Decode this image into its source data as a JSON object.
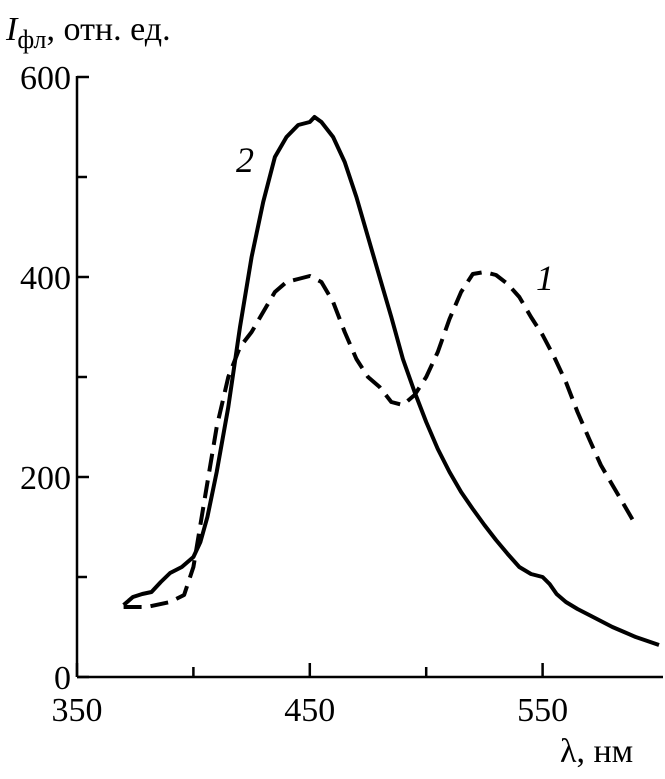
{
  "chart_data": {
    "type": "line",
    "ylabel": {
      "symbol": "I",
      "subscript": "фл",
      "unit": ", отн. ед."
    },
    "xlabel": "λ, нм",
    "xlim": [
      350,
      600
    ],
    "ylim": [
      0,
      600
    ],
    "x_ticks": [
      350,
      450,
      550
    ],
    "x_minor_ticks": [
      400,
      500
    ],
    "y_ticks": [
      0,
      200,
      400,
      600
    ],
    "y_minor_ticks": [
      100,
      300,
      500
    ],
    "grid": false,
    "series": [
      {
        "name": "1",
        "line_style": "dashed",
        "points": [
          [
            370,
            70
          ],
          [
            380,
            70
          ],
          [
            390,
            75
          ],
          [
            396,
            82
          ],
          [
            400,
            110
          ],
          [
            405,
            180
          ],
          [
            410,
            250
          ],
          [
            415,
            300
          ],
          [
            420,
            330
          ],
          [
            425,
            345
          ],
          [
            430,
            365
          ],
          [
            435,
            385
          ],
          [
            440,
            395
          ],
          [
            445,
            398
          ],
          [
            450,
            401
          ],
          [
            455,
            395
          ],
          [
            460,
            375
          ],
          [
            465,
            345
          ],
          [
            470,
            318
          ],
          [
            475,
            300
          ],
          [
            480,
            290
          ],
          [
            485,
            275
          ],
          [
            490,
            272
          ],
          [
            495,
            282
          ],
          [
            500,
            300
          ],
          [
            505,
            325
          ],
          [
            510,
            358
          ],
          [
            515,
            385
          ],
          [
            520,
            403
          ],
          [
            525,
            405
          ],
          [
            530,
            402
          ],
          [
            535,
            393
          ],
          [
            540,
            380
          ],
          [
            545,
            360
          ],
          [
            550,
            342
          ],
          [
            555,
            320
          ],
          [
            560,
            295
          ],
          [
            565,
            265
          ],
          [
            570,
            238
          ],
          [
            575,
            212
          ],
          [
            580,
            192
          ],
          [
            585,
            172
          ],
          [
            590,
            152
          ]
        ]
      },
      {
        "name": "2",
        "line_style": "solid",
        "points": [
          [
            370,
            72
          ],
          [
            374,
            80
          ],
          [
            378,
            83
          ],
          [
            382,
            85
          ],
          [
            386,
            95
          ],
          [
            390,
            104
          ],
          [
            395,
            110
          ],
          [
            400,
            120
          ],
          [
            403,
            135
          ],
          [
            406,
            160
          ],
          [
            410,
            205
          ],
          [
            415,
            270
          ],
          [
            420,
            350
          ],
          [
            425,
            420
          ],
          [
            430,
            475
          ],
          [
            435,
            520
          ],
          [
            440,
            540
          ],
          [
            445,
            552
          ],
          [
            450,
            555
          ],
          [
            452,
            560
          ],
          [
            455,
            555
          ],
          [
            460,
            540
          ],
          [
            465,
            515
          ],
          [
            470,
            480
          ],
          [
            475,
            440
          ],
          [
            480,
            400
          ],
          [
            485,
            360
          ],
          [
            490,
            318
          ],
          [
            495,
            285
          ],
          [
            500,
            255
          ],
          [
            505,
            228
          ],
          [
            510,
            205
          ],
          [
            515,
            185
          ],
          [
            520,
            168
          ],
          [
            525,
            152
          ],
          [
            530,
            137
          ],
          [
            535,
            123
          ],
          [
            540,
            110
          ],
          [
            545,
            103
          ],
          [
            550,
            100
          ],
          [
            553,
            93
          ],
          [
            556,
            83
          ],
          [
            560,
            75
          ],
          [
            565,
            68
          ],
          [
            570,
            62
          ],
          [
            575,
            56
          ],
          [
            580,
            50
          ],
          [
            585,
            45
          ],
          [
            590,
            40
          ],
          [
            595,
            36
          ],
          [
            600,
            32
          ]
        ]
      }
    ]
  }
}
